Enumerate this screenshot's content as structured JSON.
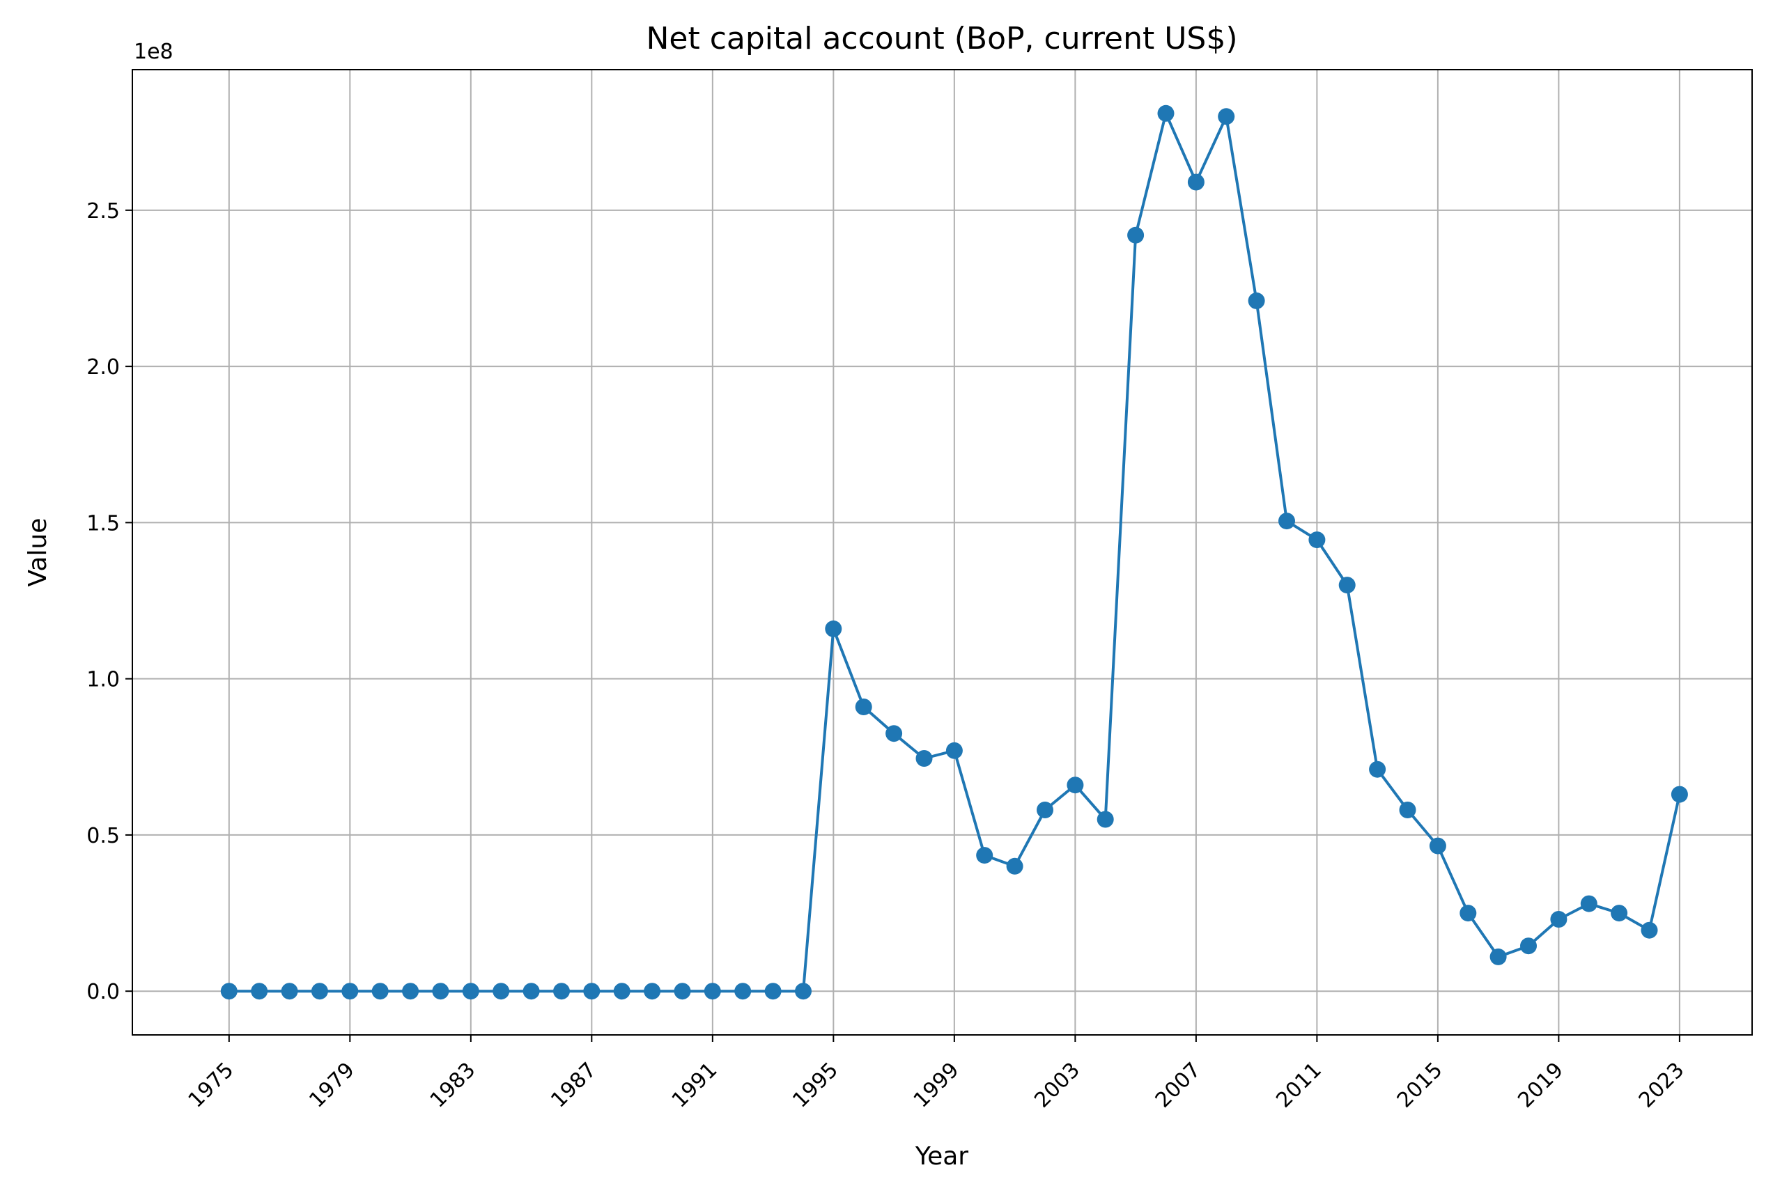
{
  "chart_data": {
    "type": "line",
    "title": "Net capital account (BoP, current US$)",
    "xlabel": "Year",
    "ylabel": "Value",
    "y_offset_label": "1e8",
    "x_ticks": [
      "1975",
      "1979",
      "1983",
      "1987",
      "1991",
      "1995",
      "1999",
      "2003",
      "2007",
      "2011",
      "2015",
      "2019",
      "2023"
    ],
    "y_ticks": [
      "0.0",
      "0.5",
      "1.0",
      "1.5",
      "2.0",
      "2.5"
    ],
    "y_tick_values": [
      0,
      50000000,
      100000000,
      150000000,
      200000000,
      250000000
    ],
    "xlim": [
      1971.8,
      2025.4
    ],
    "ylim": [
      -14000000,
      295000000
    ],
    "grid": true,
    "series": [
      {
        "color": "#1f77b4",
        "x": [
          1975,
          1976,
          1977,
          1978,
          1979,
          1980,
          1981,
          1982,
          1983,
          1984,
          1985,
          1986,
          1987,
          1988,
          1989,
          1990,
          1991,
          1992,
          1993,
          1994,
          1995,
          1996,
          1997,
          1998,
          1999,
          2000,
          2001,
          2002,
          2003,
          2004,
          2005,
          2006,
          2007,
          2008,
          2009,
          2010,
          2011,
          2012,
          2013,
          2014,
          2015,
          2016,
          2017,
          2018,
          2019,
          2020,
          2021,
          2022,
          2023
        ],
        "values": [
          0,
          0,
          0,
          0,
          0,
          0,
          0,
          0,
          0,
          0,
          0,
          0,
          0,
          0,
          0,
          0,
          0,
          0,
          0,
          0,
          116000000,
          91000000,
          82500000,
          74500000,
          77000000,
          43500000,
          40000000,
          58000000,
          66000000,
          55000000,
          242000000,
          281000000,
          259000000,
          280000000,
          221000000,
          150500000,
          144500000,
          130000000,
          71000000,
          58000000,
          46500000,
          25000000,
          11000000,
          14500000,
          23000000,
          28000000,
          25000000,
          19500000,
          63000000
        ]
      }
    ]
  }
}
